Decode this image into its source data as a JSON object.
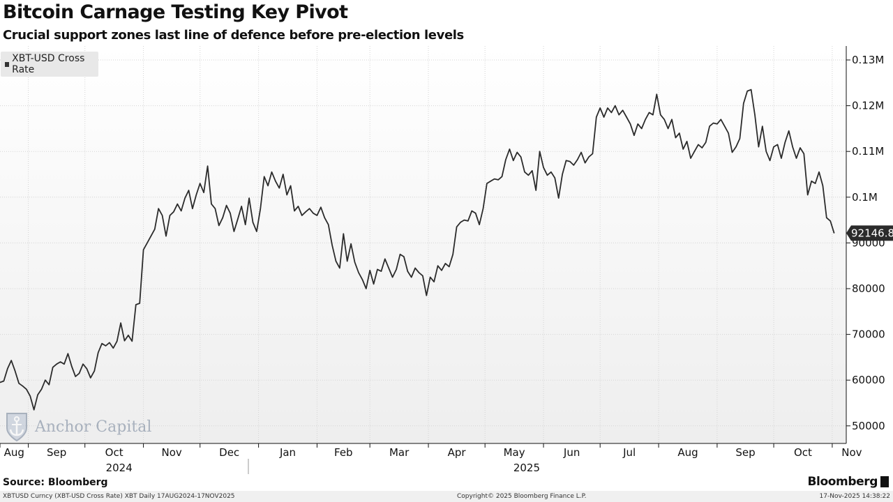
{
  "header": {
    "title": "Bitcoin Carnage Testing Key Pivot",
    "subtitle": "Crucial support zones last line of defence before pre-election levels"
  },
  "legend": {
    "label": "XBT-USD Cross Rate"
  },
  "watermark": {
    "text": "Anchor Capital"
  },
  "footer": {
    "source": "Source: Bloomberg",
    "brand": "Bloomberg",
    "ticker_line": "XBTUSD Curncy (XBT-USD Cross Rate) XBT Daily 17AUG2024-17NOV2025",
    "copyright": "Copyright© 2025 Bloomberg Finance L.P.",
    "timestamp": "17-Nov-2025 14:38:22"
  },
  "colors": {
    "line": "#2b2b2b",
    "grid": "#cfcfcf",
    "last_label_bg": "#2b2b2b"
  },
  "chart_data": {
    "type": "line",
    "series_name": "XBT-USD Cross Rate",
    "x_unit": "days since 17 Aug 2024",
    "ylim": [
      45000,
      132000
    ],
    "y_ticks": [
      50000,
      60000,
      70000,
      80000,
      90000,
      100000,
      110000,
      120000,
      130000
    ],
    "y_tick_labels": [
      "50000",
      "60000",
      "70000",
      "80000",
      "90000",
      "0.1M",
      "0.11M",
      "0.12M",
      "0.13M"
    ],
    "month_ticks": [
      {
        "label": "Aug",
        "day": 0
      },
      {
        "label": "Sep",
        "day": 15
      },
      {
        "label": "Oct",
        "day": 45
      },
      {
        "label": "Nov",
        "day": 76
      },
      {
        "label": "Dec",
        "day": 106
      },
      {
        "label": "Jan",
        "day": 137
      },
      {
        "label": "Feb",
        "day": 168
      },
      {
        "label": "Mar",
        "day": 196
      },
      {
        "label": "Apr",
        "day": 227
      },
      {
        "label": "May",
        "day": 257
      },
      {
        "label": "Jun",
        "day": 288
      },
      {
        "label": "Jul",
        "day": 318
      },
      {
        "label": "Aug",
        "day": 349
      },
      {
        "label": "Sep",
        "day": 380
      },
      {
        "label": "Oct",
        "day": 410
      },
      {
        "label": "Nov",
        "day": 441
      }
    ],
    "year_labels": [
      {
        "label": "2024",
        "day": 52
      },
      {
        "label": "2025",
        "day": 268
      }
    ],
    "last_value_label": "92146.81",
    "points": [
      [
        0,
        59500
      ],
      [
        2,
        59800
      ],
      [
        4,
        62500
      ],
      [
        6,
        64300
      ],
      [
        8,
        62000
      ],
      [
        10,
        59300
      ],
      [
        12,
        58700
      ],
      [
        14,
        58000
      ],
      [
        16,
        56500
      ],
      [
        18,
        53500
      ],
      [
        20,
        56800
      ],
      [
        22,
        58000
      ],
      [
        24,
        60000
      ],
      [
        26,
        59000
      ],
      [
        28,
        62800
      ],
      [
        30,
        63500
      ],
      [
        32,
        64000
      ],
      [
        34,
        63500
      ],
      [
        36,
        65800
      ],
      [
        38,
        63000
      ],
      [
        40,
        60800
      ],
      [
        42,
        61500
      ],
      [
        44,
        63500
      ],
      [
        46,
        62500
      ],
      [
        48,
        60500
      ],
      [
        50,
        62000
      ],
      [
        52,
        66000
      ],
      [
        54,
        68000
      ],
      [
        56,
        67500
      ],
      [
        58,
        68200
      ],
      [
        60,
        67000
      ],
      [
        62,
        68500
      ],
      [
        64,
        72500
      ],
      [
        66,
        68600
      ],
      [
        68,
        69800
      ],
      [
        70,
        68500
      ],
      [
        72,
        76500
      ],
      [
        74,
        76800
      ],
      [
        76,
        88500
      ],
      [
        78,
        90000
      ],
      [
        80,
        91500
      ],
      [
        82,
        93000
      ],
      [
        84,
        97500
      ],
      [
        86,
        96000
      ],
      [
        88,
        91500
      ],
      [
        90,
        96000
      ],
      [
        92,
        96800
      ],
      [
        94,
        98500
      ],
      [
        96,
        97000
      ],
      [
        98,
        99800
      ],
      [
        100,
        101500
      ],
      [
        102,
        97500
      ],
      [
        104,
        100500
      ],
      [
        106,
        103000
      ],
      [
        108,
        101000
      ],
      [
        110,
        106800
      ],
      [
        112,
        98500
      ],
      [
        114,
        97500
      ],
      [
        116,
        93800
      ],
      [
        118,
        95500
      ],
      [
        120,
        98200
      ],
      [
        122,
        96500
      ],
      [
        124,
        92500
      ],
      [
        126,
        95200
      ],
      [
        128,
        98000
      ],
      [
        130,
        94000
      ],
      [
        132,
        99800
      ],
      [
        134,
        94500
      ],
      [
        136,
        92500
      ],
      [
        138,
        97500
      ],
      [
        140,
        104500
      ],
      [
        142,
        102500
      ],
      [
        144,
        105500
      ],
      [
        146,
        103500
      ],
      [
        148,
        102000
      ],
      [
        150,
        105000
      ],
      [
        152,
        100500
      ],
      [
        154,
        102500
      ],
      [
        156,
        97000
      ],
      [
        158,
        98000
      ],
      [
        160,
        96000
      ],
      [
        162,
        96800
      ],
      [
        164,
        97500
      ],
      [
        166,
        96500
      ],
      [
        168,
        96000
      ],
      [
        170,
        97800
      ],
      [
        172,
        95500
      ],
      [
        174,
        94000
      ],
      [
        176,
        89500
      ],
      [
        178,
        86000
      ],
      [
        180,
        84500
      ],
      [
        182,
        92000
      ],
      [
        184,
        86000
      ],
      [
        186,
        89800
      ],
      [
        188,
        85800
      ],
      [
        190,
        83500
      ],
      [
        192,
        82000
      ],
      [
        194,
        80000
      ],
      [
        196,
        84000
      ],
      [
        198,
        81000
      ],
      [
        200,
        84200
      ],
      [
        202,
        83800
      ],
      [
        204,
        86500
      ],
      [
        206,
        84500
      ],
      [
        208,
        82500
      ],
      [
        210,
        84200
      ],
      [
        212,
        87500
      ],
      [
        214,
        87000
      ],
      [
        216,
        83800
      ],
      [
        218,
        82500
      ],
      [
        220,
        84500
      ],
      [
        222,
        83500
      ],
      [
        224,
        82800
      ],
      [
        226,
        78500
      ],
      [
        228,
        82500
      ],
      [
        230,
        81500
      ],
      [
        232,
        85000
      ],
      [
        234,
        84000
      ],
      [
        236,
        85500
      ],
      [
        238,
        84800
      ],
      [
        240,
        87500
      ],
      [
        242,
        93500
      ],
      [
        244,
        94500
      ],
      [
        246,
        95000
      ],
      [
        248,
        94800
      ],
      [
        250,
        97000
      ],
      [
        252,
        96500
      ],
      [
        254,
        94000
      ],
      [
        256,
        97500
      ],
      [
        258,
        103000
      ],
      [
        260,
        103500
      ],
      [
        262,
        104000
      ],
      [
        264,
        103800
      ],
      [
        266,
        104500
      ],
      [
        268,
        108200
      ],
      [
        270,
        110500
      ],
      [
        272,
        108000
      ],
      [
        274,
        109800
      ],
      [
        276,
        108800
      ],
      [
        278,
        105500
      ],
      [
        280,
        104800
      ],
      [
        282,
        105800
      ],
      [
        284,
        101500
      ],
      [
        286,
        110000
      ],
      [
        288,
        106500
      ],
      [
        290,
        104800
      ],
      [
        292,
        105500
      ],
      [
        294,
        104200
      ],
      [
        296,
        99800
      ],
      [
        298,
        105000
      ],
      [
        300,
        108000
      ],
      [
        302,
        107800
      ],
      [
        304,
        107000
      ],
      [
        306,
        108200
      ],
      [
        308,
        109800
      ],
      [
        310,
        107500
      ],
      [
        312,
        108800
      ],
      [
        314,
        109500
      ],
      [
        316,
        117500
      ],
      [
        318,
        119500
      ],
      [
        320,
        117500
      ],
      [
        322,
        119500
      ],
      [
        324,
        118500
      ],
      [
        326,
        120000
      ],
      [
        328,
        118000
      ],
      [
        330,
        119000
      ],
      [
        332,
        117500
      ],
      [
        334,
        116000
      ],
      [
        336,
        113500
      ],
      [
        338,
        116000
      ],
      [
        340,
        115000
      ],
      [
        342,
        117000
      ],
      [
        344,
        118500
      ],
      [
        346,
        118000
      ],
      [
        348,
        122500
      ],
      [
        350,
        118000
      ],
      [
        352,
        117000
      ],
      [
        354,
        115000
      ],
      [
        356,
        117000
      ],
      [
        358,
        113000
      ],
      [
        360,
        114000
      ],
      [
        362,
        110500
      ],
      [
        364,
        112200
      ],
      [
        366,
        108500
      ],
      [
        368,
        110000
      ],
      [
        370,
        111500
      ],
      [
        372,
        110800
      ],
      [
        374,
        112000
      ],
      [
        376,
        115500
      ],
      [
        378,
        116200
      ],
      [
        380,
        116000
      ],
      [
        382,
        117000
      ],
      [
        384,
        115500
      ],
      [
        386,
        114000
      ],
      [
        388,
        109800
      ],
      [
        390,
        111000
      ],
      [
        392,
        112800
      ],
      [
        394,
        120500
      ],
      [
        396,
        123200
      ],
      [
        398,
        123500
      ],
      [
        400,
        118000
      ],
      [
        402,
        111000
      ],
      [
        404,
        115500
      ],
      [
        406,
        110000
      ],
      [
        408,
        108000
      ],
      [
        410,
        111000
      ],
      [
        412,
        111500
      ],
      [
        414,
        108500
      ],
      [
        416,
        112000
      ],
      [
        418,
        114500
      ],
      [
        420,
        111000
      ],
      [
        422,
        108500
      ],
      [
        424,
        110800
      ],
      [
        426,
        109500
      ],
      [
        428,
        100500
      ],
      [
        430,
        103500
      ],
      [
        432,
        103000
      ],
      [
        434,
        105500
      ],
      [
        436,
        102500
      ],
      [
        438,
        95500
      ],
      [
        440,
        94800
      ],
      [
        442,
        92146.81
      ]
    ]
  }
}
